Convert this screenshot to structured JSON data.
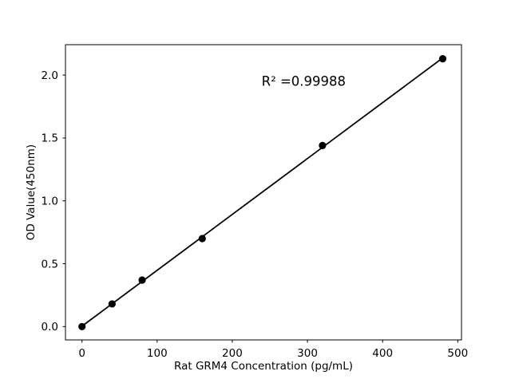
{
  "chart_data": {
    "type": "line",
    "title": "",
    "xlabel": "Rat GRM4 Concentration (pg/mL)",
    "ylabel": "OD Value(450nm)",
    "x": [
      0,
      40,
      80,
      160,
      320,
      480
    ],
    "y": [
      0.0,
      0.18,
      0.37,
      0.7,
      1.44,
      2.13
    ],
    "x_ticks": [
      0,
      100,
      200,
      300,
      400,
      500
    ],
    "x_tick_labels": [
      "0",
      "100",
      "200",
      "300",
      "400",
      "500"
    ],
    "y_ticks": [
      0.0,
      0.5,
      1.0,
      1.5,
      2.0
    ],
    "y_tick_labels": [
      "0.0",
      "0.5",
      "1.0",
      "1.5",
      "2.0"
    ],
    "xlim": [
      -22,
      505
    ],
    "ylim": [
      -0.106,
      2.242
    ],
    "grid": false,
    "legend": null,
    "marker": "circle",
    "fit_line": true,
    "annotation": {
      "text": "R² =0.99988",
      "x": 295,
      "y": 1.95
    },
    "colors": {
      "line": "#000000",
      "marker": "#000000",
      "axis": "#000000",
      "text": "#000000",
      "background": "#ffffff"
    }
  }
}
